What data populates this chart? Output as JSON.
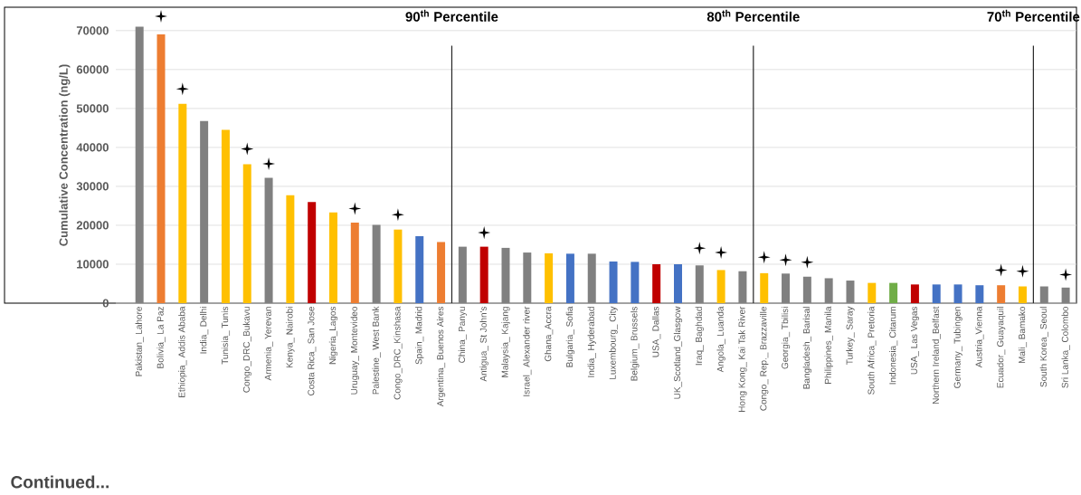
{
  "chart_data": {
    "type": "bar",
    "ylabel": "Cumulative Concentration (ng/L)",
    "categories": [
      "Pakistan_ Lahore",
      "Bolivia_ La Paz",
      "Ethiopia_ Addis Ababa",
      "India_ Delhi",
      "Tunisia_ Tunis",
      "Congo_DRC_Bukavu",
      "Armenia_ Yerevan",
      "Kenya_ Nairobi",
      "Costa Rica_ San Jose",
      "Nigeria_Lagos",
      "Uruguay_ Montevideo",
      "Palestine_ West Bank",
      "Congo_DRC_Kinshasa",
      "Spain_ Madrid",
      "Argentina_ Buenos Aires",
      "China_ Panyu",
      "Antigua_ St John's",
      "Malaysia_ Kajang",
      "Israel_ Alexander river",
      "Ghana_Accra",
      "Bulgaria_ Sofia",
      "India_ Hyderabad",
      "Luxembourg_ City",
      "Belgium_ Brussels",
      "USA_ Dallas",
      "UK_Scotland_Glasgow",
      "Iraq_ Baghdad",
      "Angola_ Luanda",
      "Hong Kong_ Kai Tak River",
      "Congo_ Rep._ Brazzaville",
      "Georgia_ Tbilisi",
      "Bangladesh_ Barisal",
      "Philippines_ Manila",
      "Turkey_ Saray",
      "South Africa_ Pretoria",
      "Indonesia_ Citarum",
      "USA_ Las Vegas",
      "Northern Ireland_Belfast",
      "Germany_ Tubingen",
      "Austria_Vienna",
      "Ecuador_ Guayaquil",
      "Mali_ Bamako",
      "South Korea_ Seoul",
      "Sri Lanka_ Colombo"
    ],
    "series": [
      {
        "values": [
          71000,
          69000,
          51200,
          46800,
          44500,
          35700,
          32200,
          27700,
          26000,
          23300,
          20700,
          20100,
          18900,
          17200,
          15700,
          14500,
          14500,
          14200,
          13000,
          12800,
          12700,
          12700,
          10700,
          10600,
          10000,
          10000,
          9700,
          8500,
          8200,
          7700,
          7600,
          6800,
          6400,
          5800,
          5200,
          5200,
          4800,
          4800,
          4800,
          4600,
          4600,
          4300,
          4300,
          4000
        ],
        "colors": [
          "#808080",
          "#ed7d31",
          "#ffc000",
          "#808080",
          "#ffc000",
          "#ffc000",
          "#808080",
          "#ffc000",
          "#c00000",
          "#ffc000",
          "#ed7d31",
          "#808080",
          "#ffc000",
          "#4472c4",
          "#ed7d31",
          "#808080",
          "#c00000",
          "#808080",
          "#808080",
          "#ffc000",
          "#4472c4",
          "#808080",
          "#4472c4",
          "#4472c4",
          "#c00000",
          "#4472c4",
          "#808080",
          "#ffc000",
          "#808080",
          "#ffc000",
          "#808080",
          "#808080",
          "#808080",
          "#808080",
          "#ffc000",
          "#70ad47",
          "#c00000",
          "#4472c4",
          "#4472c4",
          "#4472c4",
          "#ed7d31",
          "#ffc000",
          "#808080",
          "#808080"
        ]
      },
      {
        "type": "scatter",
        "marker": "star",
        "color": "#000000",
        "x": [
          "Bolivia_ La Paz",
          "Ethiopia_ Addis Ababa",
          "Congo_DRC_Bukavu",
          "Armenia_ Yerevan",
          "Uruguay_ Montevideo",
          "Congo_DRC_Kinshasa",
          "Antigua_ St John's",
          "Iraq_ Baghdad",
          "Angola_ Luanda",
          "Congo_ Rep._ Brazzaville",
          "Georgia_ Tbilisi",
          "Bangladesh_ Barisal",
          "Ecuador_ Guayaquil",
          "Mali_ Bamako",
          "Sri Lanka_ Colombo"
        ],
        "values": [
          73700,
          55000,
          39600,
          35800,
          24300,
          22700,
          18100,
          14100,
          13000,
          11800,
          11100,
          10500,
          8500,
          8200,
          7300
        ]
      }
    ],
    "ylim": [
      0,
      76000
    ],
    "yticks": [
      0,
      10000,
      20000,
      30000,
      40000,
      50000,
      60000,
      70000
    ],
    "grid": "y",
    "annotations": [
      "90$^{th}$ Percentile",
      "80$^{th}$ Percentile",
      "70$^{th}$ Percentile",
      "Continued..."
    ]
  }
}
